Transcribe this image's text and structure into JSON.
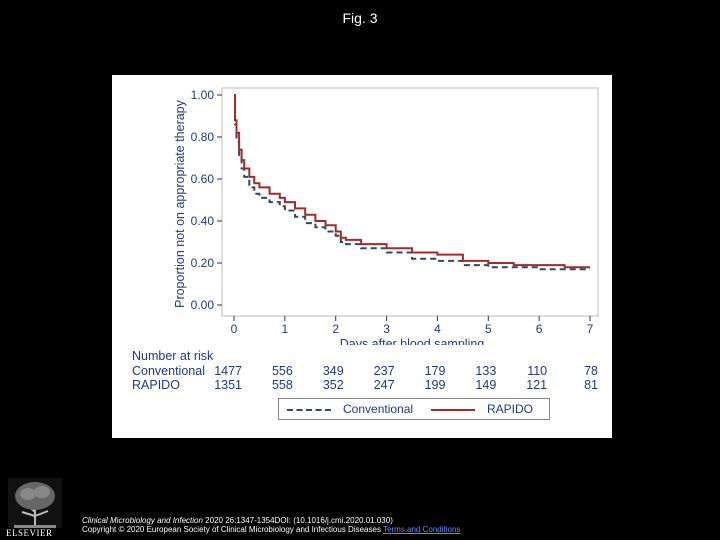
{
  "slide_title": "Fig. 3",
  "chart_data": {
    "type": "line",
    "title": "",
    "xlabel": "Days after blood sampling",
    "ylabel": "Proportion not on appropriate therapy",
    "xlim": [
      0,
      7
    ],
    "ylim": [
      0,
      1
    ],
    "x_ticks": [
      "0",
      "1",
      "2",
      "3",
      "4",
      "5",
      "6",
      "7"
    ],
    "y_ticks": [
      "0.00",
      "0.20",
      "0.40",
      "0.60",
      "0.80",
      "1.00"
    ],
    "grid": false,
    "series": [
      {
        "name": "Conventional",
        "color": "#2e4a66",
        "dash": true,
        "x": [
          0,
          0.02,
          0.05,
          0.1,
          0.15,
          0.2,
          0.3,
          0.4,
          0.5,
          0.7,
          0.9,
          1.0,
          1.2,
          1.4,
          1.6,
          1.8,
          2.0,
          2.1,
          2.2,
          2.5,
          3.0,
          3.5,
          4.0,
          4.5,
          5.0,
          5.5,
          6.0,
          6.5,
          7.0
        ],
        "y": [
          1.0,
          0.86,
          0.78,
          0.7,
          0.65,
          0.61,
          0.56,
          0.53,
          0.51,
          0.49,
          0.47,
          0.45,
          0.42,
          0.39,
          0.37,
          0.35,
          0.33,
          0.3,
          0.29,
          0.27,
          0.25,
          0.22,
          0.21,
          0.19,
          0.18,
          0.18,
          0.17,
          0.17,
          0.17
        ]
      },
      {
        "name": "RAPIDO",
        "color": "#a52a2a",
        "dash": false,
        "x": [
          0,
          0.02,
          0.05,
          0.1,
          0.15,
          0.2,
          0.3,
          0.4,
          0.5,
          0.7,
          0.9,
          1.0,
          1.2,
          1.4,
          1.6,
          1.8,
          2.0,
          2.1,
          2.2,
          2.5,
          3.0,
          3.5,
          4.0,
          4.5,
          5.0,
          5.5,
          6.0,
          6.5,
          7.0
        ],
        "y": [
          1.0,
          0.88,
          0.82,
          0.74,
          0.69,
          0.65,
          0.61,
          0.58,
          0.56,
          0.53,
          0.51,
          0.49,
          0.46,
          0.43,
          0.4,
          0.38,
          0.35,
          0.32,
          0.31,
          0.29,
          0.27,
          0.25,
          0.24,
          0.21,
          0.2,
          0.19,
          0.19,
          0.18,
          0.18
        ]
      }
    ],
    "risk_table": {
      "header": "Number at risk",
      "rows": [
        {
          "label": "Conventional",
          "values": [
            "1477",
            "556",
            "349",
            "237",
            "179",
            "133",
            "110",
            "78"
          ]
        },
        {
          "label": "RAPIDO",
          "values": [
            "1351",
            "558",
            "352",
            "247",
            "199",
            "149",
            "121",
            "81"
          ]
        }
      ]
    },
    "legend": {
      "position": "bottom",
      "entries": [
        "Conventional",
        "RAPIDO"
      ]
    }
  },
  "footer": {
    "journal": "Clinical Microbiology and Infection",
    "citation": " 2020 26:1347-1354DOI: (10.1016/j.cmi.2020.01.030)",
    "copyright": "Copyright © 2020 European Society of Clinical Microbiology and Infectious Diseases ",
    "link_text": "Terms and Conditions"
  },
  "logo": {
    "text": "ELSEVIER"
  }
}
